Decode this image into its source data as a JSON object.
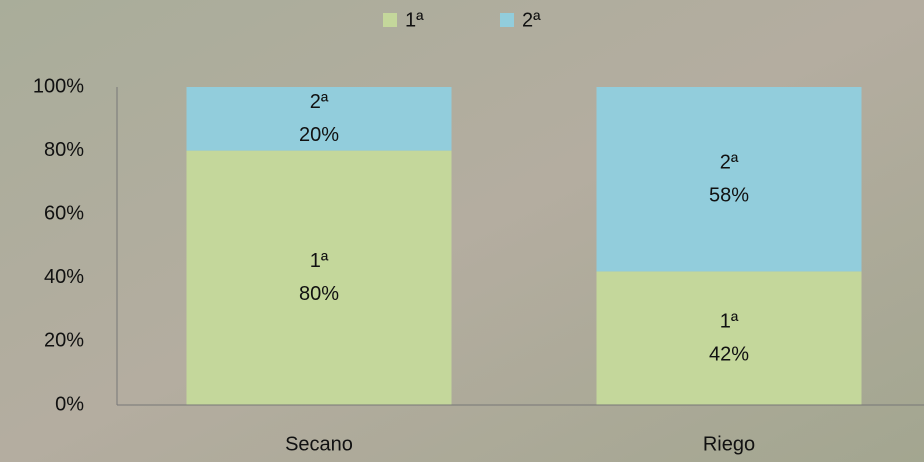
{
  "chart_data": {
    "type": "stacked-bar",
    "categories": [
      "Secano",
      "Riego"
    ],
    "series": [
      {
        "name": "1ª",
        "color": "#c4d79b",
        "values": [
          80,
          42
        ],
        "value_labels": [
          "80%",
          "42%"
        ]
      },
      {
        "name": "2ª",
        "color": "#92cddc",
        "values": [
          20,
          58
        ],
        "value_labels": [
          "20%",
          "58%"
        ]
      }
    ],
    "ylim": [
      0,
      100
    ],
    "yticks": [
      {
        "value": 0,
        "label": "0%"
      },
      {
        "value": 20,
        "label": "20%"
      },
      {
        "value": 40,
        "label": "40%"
      },
      {
        "value": 60,
        "label": "60%"
      },
      {
        "value": 80,
        "label": "80%"
      },
      {
        "value": 100,
        "label": "100%"
      }
    ],
    "legend": "top"
  }
}
